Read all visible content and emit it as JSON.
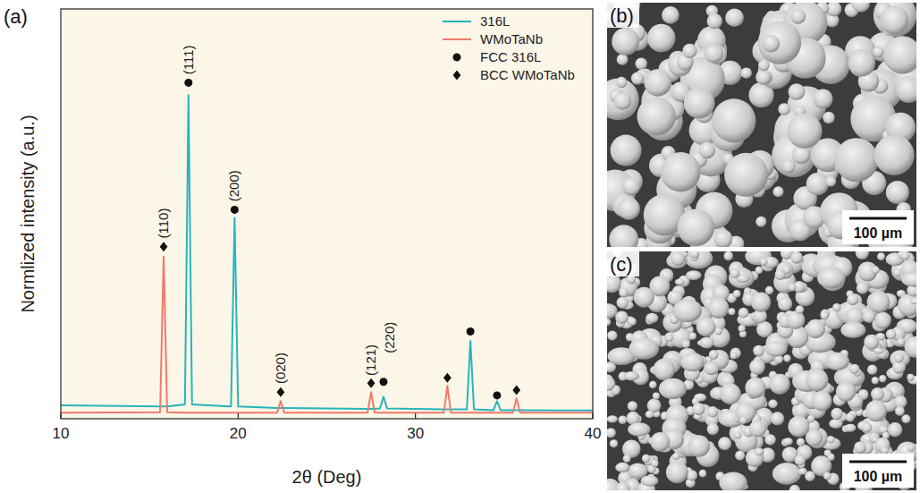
{
  "chart_data": {
    "type": "line",
    "panel_label": "(a)",
    "xlabel": "2θ (Deg)",
    "ylabel": "Normlized intensity (a.u.)",
    "x": [
      10,
      15.6,
      15.8,
      16.0,
      17.0,
      17.2,
      17.4,
      19.6,
      19.8,
      20.0,
      22.2,
      22.4,
      22.6,
      27.3,
      27.5,
      27.7,
      28.0,
      28.2,
      28.4,
      31.6,
      31.8,
      32.0,
      32.9,
      33.1,
      33.3,
      34.4,
      34.6,
      34.8,
      35.5,
      35.7,
      35.9,
      40
    ],
    "xlim": [
      10,
      40
    ],
    "xticks": [
      10,
      20,
      30,
      40
    ],
    "ylim": [
      0,
      1
    ],
    "yticks": [],
    "tick_labels": "x",
    "legend": "upper right",
    "series": [
      {
        "name": "316L",
        "type": "line",
        "color": "#26b5bb",
        "values": [
          0.033,
          0.03,
          0.03,
          0.03,
          0.035,
          0.79,
          0.035,
          0.03,
          0.49,
          0.03,
          0.026,
          0.026,
          0.026,
          0.024,
          0.024,
          0.024,
          0.025,
          0.054,
          0.025,
          0.023,
          0.023,
          0.023,
          0.023,
          0.19,
          0.023,
          0.021,
          0.043,
          0.021,
          0.021,
          0.021,
          0.021,
          0.02
        ]
      },
      {
        "name": "WMoTaNb",
        "type": "line",
        "color": "#ee7a6b",
        "values": [
          0.015,
          0.016,
          0.396,
          0.016,
          0.015,
          0.015,
          0.015,
          0.015,
          0.015,
          0.015,
          0.015,
          0.043,
          0.015,
          0.015,
          0.065,
          0.015,
          0.015,
          0.015,
          0.015,
          0.015,
          0.08,
          0.015,
          0.015,
          0.015,
          0.015,
          0.015,
          0.015,
          0.015,
          0.015,
          0.05,
          0.015,
          0.015
        ]
      },
      {
        "name": "FCC 316L",
        "type": "scatter",
        "marker": "circle",
        "color": "#111111",
        "x": [
          17.2,
          19.8,
          28.2,
          33.1,
          34.6
        ],
        "values": [
          0.82,
          0.51,
          0.09,
          0.213,
          0.057
        ]
      },
      {
        "name": "BCC WMoTaNb",
        "type": "scatter",
        "marker": "diamond",
        "color": "#111111",
        "x": [
          15.8,
          22.4,
          27.5,
          31.8,
          35.7
        ],
        "values": [
          0.42,
          0.065,
          0.087,
          0.1,
          0.07
        ]
      }
    ],
    "annotations": [
      {
        "text": "(110)",
        "x": 15.8,
        "y": 0.44
      },
      {
        "text": "(111)",
        "x": 17.2,
        "y": 0.84
      },
      {
        "text": "(200)",
        "x": 19.8,
        "y": 0.53
      },
      {
        "text": "(020)",
        "x": 22.4,
        "y": 0.085
      },
      {
        "text": "(121)",
        "x": 27.5,
        "y": 0.105
      },
      {
        "text": "(220)",
        "x": 28.55,
        "y": 0.16
      }
    ]
  },
  "images": [
    {
      "panel_label": "(b)",
      "scale_bar": "100 µm"
    },
    {
      "panel_label": "(c)",
      "scale_bar": "100 µm"
    }
  ]
}
